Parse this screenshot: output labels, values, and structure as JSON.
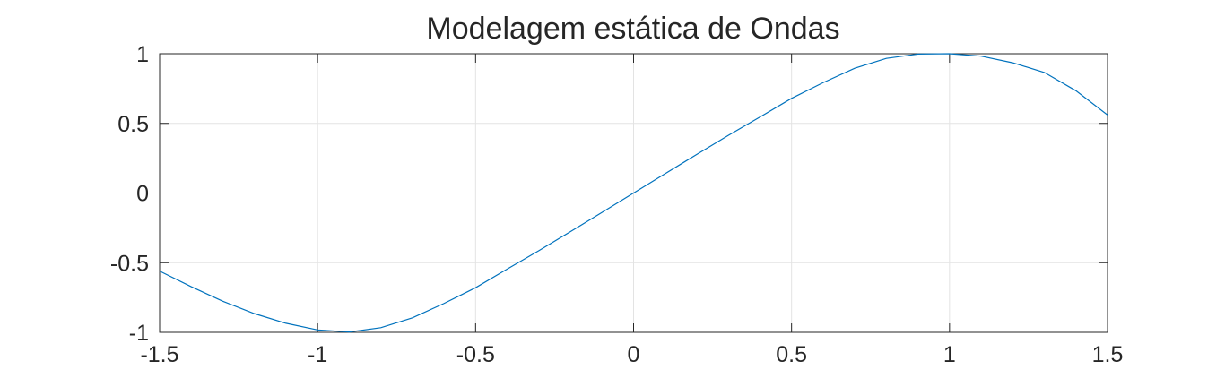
{
  "chart_data": {
    "type": "line",
    "title": "Modelagem estática de Ondas",
    "xlabel": "",
    "ylabel": "",
    "xlim": [
      -1.5,
      1.5
    ],
    "ylim": [
      -1,
      1
    ],
    "xticks": [
      -1.5,
      -1,
      -0.5,
      0,
      0.5,
      1,
      1.5
    ],
    "xtick_labels": [
      "-1.5",
      "-1",
      "-0.5",
      "0",
      "0.5",
      "1",
      "1.5"
    ],
    "yticks": [
      -1,
      -0.5,
      0,
      0.5,
      1
    ],
    "ytick_labels": [
      "-1",
      "-0.5",
      "0",
      "0.5",
      "1"
    ],
    "grid": true,
    "series": [
      {
        "color": "#0072bd",
        "x": [
          -1.5,
          -1.4,
          -1.3,
          -1.2,
          -1.1,
          -1.0,
          -0.9,
          -0.8,
          -0.7,
          -0.6,
          -0.5,
          -0.4,
          -0.3,
          -0.2,
          -0.1,
          0.0,
          0.1,
          0.2,
          0.3,
          0.4,
          0.5,
          0.6,
          0.7,
          0.8,
          0.9,
          1.0,
          1.1,
          1.2,
          1.3,
          1.4,
          1.5
        ],
        "y": [
          -0.5603,
          -0.6722,
          -0.777,
          -0.8658,
          -0.935,
          -0.9829,
          -0.9974,
          -0.9665,
          -0.8957,
          -0.7927,
          -0.6797,
          -0.5456,
          -0.414,
          -0.2775,
          -0.1391,
          0.0,
          0.1391,
          0.2775,
          0.414,
          0.5456,
          0.6797,
          0.7927,
          0.8957,
          0.9665,
          0.9974,
          1.0,
          0.9829,
          0.935,
          0.8658,
          0.7344,
          0.5603
        ]
      }
    ]
  }
}
